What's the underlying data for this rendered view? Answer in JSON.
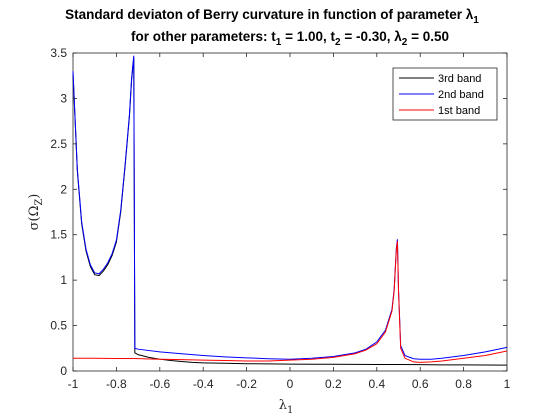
{
  "chart_data": {
    "type": "line",
    "title_line1": "Standard deviaton of Berry curvature in function of parameter λ",
    "title_line1_sub": "1",
    "title_line2_parts": [
      "for other parameters: t",
      "1",
      " = 1.00, t",
      "2",
      " = -0.30, λ",
      "2",
      " = 0.50"
    ],
    "xlabel": "λ",
    "xlabel_sub": "1",
    "ylabel": "σ(Ω",
    "ylabel_sub": "Z",
    "ylabel_end": ")",
    "xlim": [
      -1,
      1
    ],
    "ylim": [
      0,
      3.5
    ],
    "xticks": [
      -1,
      -0.8,
      -0.6,
      -0.4,
      -0.2,
      0,
      0.2,
      0.4,
      0.6,
      0.8,
      1
    ],
    "xtick_labels": [
      "-1",
      "-0.8",
      "-0.6",
      "-0.4",
      "-0.2",
      "0",
      "0.2",
      "0.4",
      "0.6",
      "0.8",
      "1"
    ],
    "yticks": [
      0,
      0.5,
      1,
      1.5,
      2,
      2.5,
      3,
      3.5
    ],
    "ytick_labels": [
      "0",
      "0.5",
      "1",
      "1.5",
      "2",
      "2.5",
      "3",
      "3.5"
    ],
    "grid": false,
    "legend_position": "top-right",
    "series": [
      {
        "name": "3rd band",
        "color": "#000000",
        "points": [
          [
            -1,
            3.28
          ],
          [
            -0.98,
            2.2
          ],
          [
            -0.96,
            1.62
          ],
          [
            -0.94,
            1.32
          ],
          [
            -0.92,
            1.15
          ],
          [
            -0.9,
            1.06
          ],
          [
            -0.88,
            1.05
          ],
          [
            -0.86,
            1.1
          ],
          [
            -0.84,
            1.17
          ],
          [
            -0.82,
            1.27
          ],
          [
            -0.8,
            1.42
          ],
          [
            -0.78,
            1.75
          ],
          [
            -0.76,
            2.25
          ],
          [
            -0.74,
            2.8
          ],
          [
            -0.73,
            3.2
          ],
          [
            -0.72,
            3.45
          ],
          [
            -0.715,
            0.2
          ],
          [
            -0.7,
            0.18
          ],
          [
            -0.65,
            0.15
          ],
          [
            -0.6,
            0.13
          ],
          [
            -0.55,
            0.115
          ],
          [
            -0.5,
            0.105
          ],
          [
            -0.45,
            0.095
          ],
          [
            -0.4,
            0.09
          ],
          [
            -0.3,
            0.085
          ],
          [
            -0.2,
            0.08
          ],
          [
            -0.1,
            0.078
          ],
          [
            0,
            0.076
          ],
          [
            0.1,
            0.075
          ],
          [
            0.2,
            0.074
          ],
          [
            0.3,
            0.073
          ],
          [
            0.4,
            0.072
          ],
          [
            0.5,
            0.071
          ],
          [
            0.6,
            0.07
          ],
          [
            0.7,
            0.068
          ],
          [
            0.8,
            0.067
          ],
          [
            0.9,
            0.066
          ],
          [
            1,
            0.065
          ]
        ]
      },
      {
        "name": "2nd band",
        "color": "#0000ff",
        "points": [
          [
            -1,
            3.3
          ],
          [
            -0.98,
            2.22
          ],
          [
            -0.96,
            1.64
          ],
          [
            -0.94,
            1.34
          ],
          [
            -0.92,
            1.17
          ],
          [
            -0.9,
            1.08
          ],
          [
            -0.88,
            1.07
          ],
          [
            -0.86,
            1.12
          ],
          [
            -0.84,
            1.19
          ],
          [
            -0.82,
            1.29
          ],
          [
            -0.8,
            1.44
          ],
          [
            -0.78,
            1.77
          ],
          [
            -0.76,
            2.27
          ],
          [
            -0.74,
            2.82
          ],
          [
            -0.73,
            3.22
          ],
          [
            -0.72,
            3.47
          ],
          [
            -0.715,
            0.25
          ],
          [
            -0.7,
            0.24
          ],
          [
            -0.6,
            0.21
          ],
          [
            -0.5,
            0.19
          ],
          [
            -0.4,
            0.17
          ],
          [
            -0.3,
            0.155
          ],
          [
            -0.2,
            0.145
          ],
          [
            -0.1,
            0.135
          ],
          [
            0,
            0.13
          ],
          [
            0.1,
            0.14
          ],
          [
            0.2,
            0.16
          ],
          [
            0.3,
            0.2
          ],
          [
            0.35,
            0.24
          ],
          [
            0.4,
            0.32
          ],
          [
            0.44,
            0.45
          ],
          [
            0.47,
            0.68
          ],
          [
            0.48,
            0.9
          ],
          [
            0.49,
            1.35
          ],
          [
            0.495,
            1.45
          ],
          [
            0.5,
            0.9
          ],
          [
            0.51,
            0.28
          ],
          [
            0.53,
            0.17
          ],
          [
            0.57,
            0.135
          ],
          [
            0.6,
            0.13
          ],
          [
            0.65,
            0.13
          ],
          [
            0.7,
            0.14
          ],
          [
            0.8,
            0.17
          ],
          [
            0.9,
            0.21
          ],
          [
            1,
            0.26
          ]
        ]
      },
      {
        "name": "1st band",
        "color": "#ff0000",
        "points": [
          [
            -1,
            0.14
          ],
          [
            -0.9,
            0.14
          ],
          [
            -0.8,
            0.138
          ],
          [
            -0.72,
            0.137
          ],
          [
            -0.7,
            0.136
          ],
          [
            -0.6,
            0.13
          ],
          [
            -0.5,
            0.125
          ],
          [
            -0.4,
            0.12
          ],
          [
            -0.3,
            0.115
          ],
          [
            -0.2,
            0.11
          ],
          [
            -0.1,
            0.11
          ],
          [
            0,
            0.12
          ],
          [
            0.1,
            0.13
          ],
          [
            0.2,
            0.15
          ],
          [
            0.3,
            0.19
          ],
          [
            0.35,
            0.23
          ],
          [
            0.4,
            0.3
          ],
          [
            0.44,
            0.43
          ],
          [
            0.47,
            0.66
          ],
          [
            0.48,
            0.88
          ],
          [
            0.49,
            1.33
          ],
          [
            0.495,
            1.43
          ],
          [
            0.5,
            0.88
          ],
          [
            0.51,
            0.25
          ],
          [
            0.53,
            0.14
          ],
          [
            0.57,
            0.1
          ],
          [
            0.6,
            0.095
          ],
          [
            0.65,
            0.1
          ],
          [
            0.7,
            0.11
          ],
          [
            0.8,
            0.14
          ],
          [
            0.9,
            0.17
          ],
          [
            1,
            0.22
          ]
        ]
      }
    ]
  }
}
